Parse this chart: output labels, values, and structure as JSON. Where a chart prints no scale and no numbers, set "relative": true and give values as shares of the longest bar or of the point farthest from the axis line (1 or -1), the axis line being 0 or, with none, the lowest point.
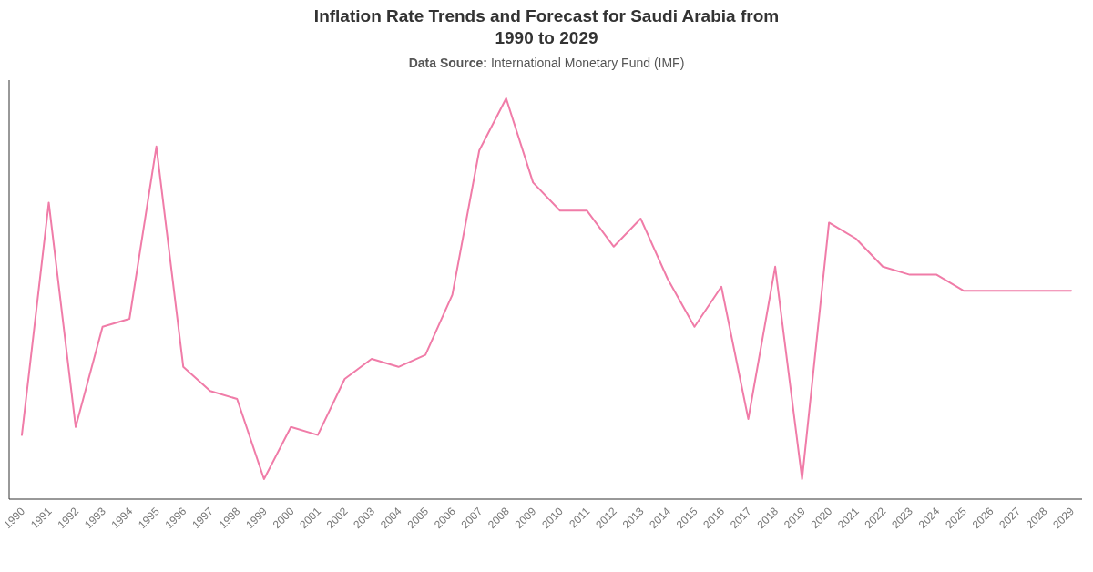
{
  "chart_data": {
    "type": "line",
    "title": "Inflation Rate Trends and Forecast for Saudi Arabia from 1990 to 2029",
    "subtitle": "Data Source: International Monetary Fund (IMF)",
    "relative": true,
    "categories": [
      "1990",
      "1991",
      "1992",
      "1993",
      "1994",
      "1995",
      "1996",
      "1997",
      "1998",
      "1999",
      "2000",
      "2001",
      "2002",
      "2003",
      "2004",
      "2005",
      "2006",
      "2007",
      "2008",
      "2009",
      "2010",
      "2011",
      "2012",
      "2013",
      "2014",
      "2015",
      "2016",
      "2017",
      "2018",
      "2019",
      "2020",
      "2021",
      "2022",
      "2023",
      "2024",
      "2025",
      "2026",
      "2027",
      "2028",
      "2029"
    ],
    "series": [
      {
        "color": "#f07ca8",
        "values": [
          0.16,
          0.74,
          0.18,
          0.43,
          0.45,
          0.88,
          0.33,
          0.27,
          0.25,
          0.05,
          0.18,
          0.16,
          0.3,
          0.35,
          0.33,
          0.36,
          0.51,
          0.87,
          1,
          0.79,
          0.72,
          0.72,
          0.63,
          0.7,
          0.55,
          0.43,
          0.53,
          0.2,
          0.58,
          0.05,
          0.69,
          0.65,
          0.58,
          0.56,
          0.56,
          0.52,
          0.52,
          0.52,
          0.52,
          0.52
        ]
      }
    ],
    "marker": "none",
    "line_style": "solid"
  }
}
